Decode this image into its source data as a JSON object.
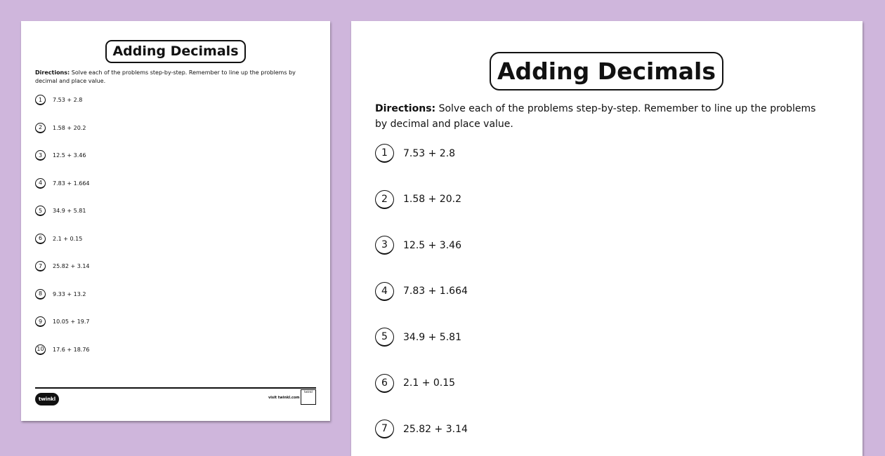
{
  "title": "Adding Decimals",
  "directions_label": "Directions:",
  "directions_text": " Solve each of the problems step-by-step. Remember to line up the problems by decimal and place value.",
  "problems": [
    {
      "n": "1",
      "expr": "7.53 + 2.8"
    },
    {
      "n": "2",
      "expr": "1.58 + 20.2"
    },
    {
      "n": "3",
      "expr": "12.5 + 3.46"
    },
    {
      "n": "4",
      "expr": "7.83 + 1.664"
    },
    {
      "n": "5",
      "expr": "34.9 + 5.81"
    },
    {
      "n": "6",
      "expr": "2.1 + 0.15"
    },
    {
      "n": "7",
      "expr": "25.82 + 3.14"
    },
    {
      "n": "8",
      "expr": "9.33 + 13.2"
    },
    {
      "n": "9",
      "expr": "10.05 + 19.7"
    },
    {
      "n": "10",
      "expr": "17.6 + 18.76"
    }
  ],
  "footer": {
    "logo": "twinkl",
    "visit": "visit twinkl.com",
    "badge": "twinkl"
  },
  "colors": {
    "background": "#cfb6dc"
  }
}
